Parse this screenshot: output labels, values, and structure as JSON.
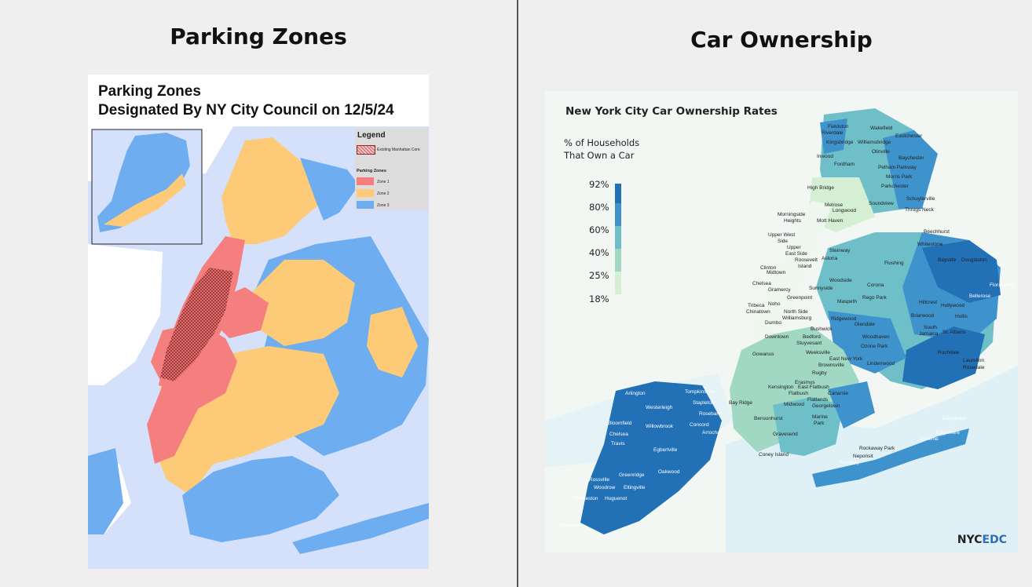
{
  "left_panel": {
    "heading": "Parking Zones",
    "map_title_line1": "Parking Zones",
    "map_title_line2": "Designated By NY City Council on 12/5/24",
    "legend": {
      "title": "Legend",
      "existing_label": "Existing Manhattan Core",
      "section_title": "Parking Zones",
      "zones": [
        {
          "label": "Zone 1",
          "color": "#f57f7f"
        },
        {
          "label": "Zone 2",
          "color": "#fdcb78"
        },
        {
          "label": "Zone 3",
          "color": "#6eaef0"
        }
      ]
    },
    "colors": {
      "water": "#d5e1fa",
      "zone1": "#f57f7f",
      "zone2": "#fdcb78",
      "zone3": "#6eaef0",
      "core_hatch": "#8a2a2a"
    }
  },
  "right_panel": {
    "heading": "Car Ownership",
    "map_title": "New York City Car Ownership Rates",
    "legend_title_line1": "% of Households",
    "legend_title_line2": "That Own a Car",
    "scale_ticks": [
      "92%",
      "80%",
      "60%",
      "40%",
      "25%",
      "18%"
    ],
    "scale_colors": [
      "#2270b5",
      "#3f93cc",
      "#6fbfc9",
      "#a0d8c4",
      "#d4efd3",
      "#eef8ee"
    ],
    "logo_prefix": "NYC",
    "logo_suffix": "EDC",
    "neighborhoods": {
      "fieldston": "Fieldston",
      "riverdale": "Riverdale",
      "wakefield": "Wakefield",
      "eastchester": "Eastchester",
      "kingsbridge": "Kingsbridge",
      "williamsbridge": "Williamsbridge",
      "olinville": "Olinville",
      "baychester": "Baychester",
      "inwood": "Inwood",
      "fordham": "Fordham",
      "pelham_parkway": "Pelham Parkway",
      "morris_park": "Morris Park",
      "parkchester": "Parkchester",
      "high_bridge": "High  Bridge",
      "schuylerville": "Schuylerville",
      "melrose": "Melrose",
      "longwood": "Longwood",
      "soundview": "Soundview",
      "throgs_neck": "Throgs Neck",
      "morningside": "Morningside",
      "heights": "Heights",
      "mott_haven": "Mott Haven",
      "upper_west": "Upper West",
      "side": "Side",
      "upper": "Upper",
      "east_side": "East Side",
      "roosevelt": "Roosevelt",
      "island": "Island",
      "steinway": "Steinway",
      "astoria": "Astoria",
      "beechhurst": "Beechhurst",
      "whitestone": "Whitestone",
      "flushing": "Flushing",
      "bayside": "Bayside",
      "douglaston": "Douglaston",
      "clinton": "Clinton",
      "midtown": "Midtown",
      "chelsea": "Chelsea",
      "gramercy": "Gramercy",
      "woodside": "Woodside",
      "sunnyside": "Sunnyside",
      "corona": "Corona",
      "floral_park": "Floral Park",
      "bellerose": "Bellerose",
      "tribeca": "Tribeca",
      "noho": "Noho",
      "chinatown": "Chinatown",
      "greenpoint": "Greenpoint",
      "maspeth": "Maspeth",
      "rego_park": "Rego Park",
      "hillcrest": "Hillcrest",
      "hollywood": "Hollywood",
      "north_side": "North Side",
      "williamsburg": "Williamsburg",
      "dumbo": "Dumbo",
      "bushwick": "Bushwick",
      "ridgewood": "Ridgewood",
      "glendale": "Glendale",
      "briarwood": "Briarwood",
      "hollis": "Hollis",
      "south_jamaica": "South",
      "jamaica": "Jamaica",
      "st_albans": "St. Albans",
      "downtown": "Downtown",
      "bedford": "Bedford",
      "stuyvesant": "Stuyvesant",
      "woodhaven": "Woodhaven",
      "ozone_park": "Ozone Park",
      "rochdale": "Rochdale",
      "gowanus": "Gowanus",
      "weeksville": "Weeksville",
      "east_new_york": "East New York",
      "brownsville": "Brownsville",
      "lindenwood": "Lindenwood",
      "laurelton": "Laurelton",
      "rosedale": "Rosedale",
      "rugby": "Rugby",
      "erasmus": "Erasmus",
      "east_flatbush": "East Flatbush",
      "kensington": "Kensington",
      "flatbush": "Flatbush",
      "canarsie": "Canarsie",
      "flatlands": "Flatlands",
      "midwood": "Midwood",
      "georgetown": "Georgetown",
      "arlington": "Arlington",
      "tompkinsville": "Tompkinsville",
      "stapleton": "Stapleton",
      "rosebank": "Rosebank",
      "westerleigh": "Westerleigh",
      "bay_ridge": "Bay Ridge",
      "bensonhurst": "Bensonhurst",
      "marine_park": "Marine",
      "park": "Park",
      "bayswater": "Bayswater",
      "edgemere": "Edgemere",
      "arverne": "Arverne",
      "bloomfield": "Bloomfield",
      "chelsea_si": "Chelsea",
      "willowbrook": "Willowbrook",
      "concord": "Concord",
      "arrochar": "Arrochar",
      "travis": "Travis",
      "gravesend": "Gravesend",
      "coney_island": "Coney Island",
      "rockaway_park": "Rockaway Park",
      "neponsit": "Neponsit",
      "roxbury": "Roxbury",
      "egbertville": "Egbertville",
      "oakwood": "Oakwood",
      "rossville": "Rossville",
      "greenridge": "Greenridge",
      "woodrow": "Woodrow",
      "eltingville": "Eltingville",
      "charleston": "Charleston",
      "huguenot": "Huguenot",
      "tottenville": "Tottenville"
    }
  }
}
